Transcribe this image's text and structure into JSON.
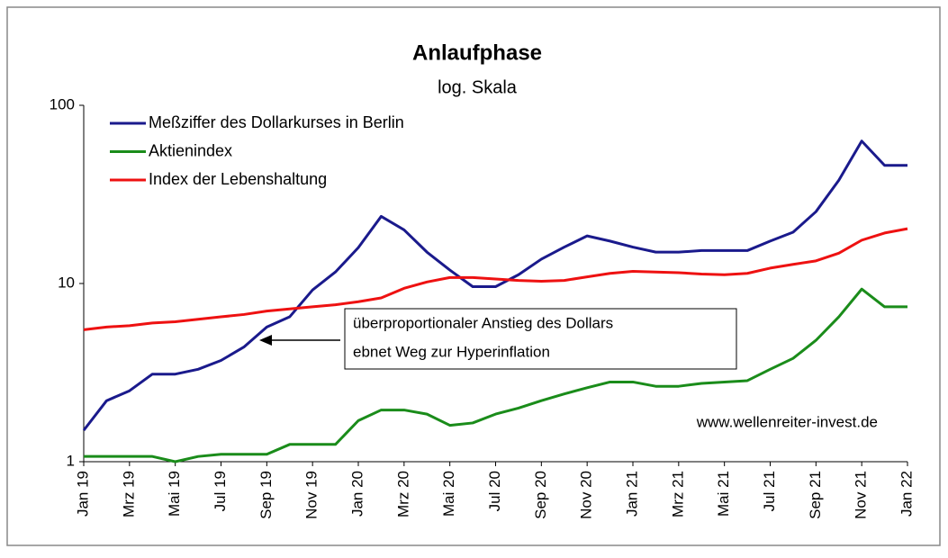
{
  "chart_data": {
    "type": "line",
    "title": "Anlaufphase",
    "subtitle": "log. Skala",
    "categories": [
      "Jan 19",
      null,
      "Mrz 19",
      null,
      "Mai 19",
      null,
      "Jul 19",
      null,
      "Sep 19",
      null,
      "Nov 19",
      null,
      "Jan 20",
      null,
      "Mrz 20",
      null,
      "Mai 20",
      null,
      "Jul 20",
      null,
      "Sep 20",
      null,
      "Nov 20",
      null,
      "Jan 21",
      null,
      "Mrz 21",
      null,
      "Mai 21",
      null,
      "Jul 21",
      null,
      "Sep 21",
      null,
      "Nov 21",
      null,
      "Jan 22"
    ],
    "series": [
      {
        "name": "Meßziffer des Dollarkurses in Berlin",
        "color": "#1a1a8c",
        "values": [
          1.5,
          2.2,
          2.5,
          3.1,
          3.1,
          3.3,
          3.7,
          4.4,
          5.7,
          6.5,
          9.2,
          11.6,
          15.9,
          23.8,
          20,
          15,
          11.9,
          9.6,
          9.6,
          11.2,
          13.7,
          16,
          18.5,
          17.3,
          16,
          15,
          15,
          15.3,
          15.3,
          15.3,
          17.3,
          19.4,
          25.3,
          38,
          63,
          46,
          46
        ]
      },
      {
        "name": "Aktienindex",
        "color": "#1a8c1a",
        "values": [
          1.07,
          1.07,
          1.07,
          1.07,
          1.0,
          1.07,
          1.1,
          1.1,
          1.1,
          1.25,
          1.25,
          1.25,
          1.7,
          1.95,
          1.95,
          1.85,
          1.6,
          1.65,
          1.85,
          2.0,
          2.2,
          2.4,
          2.6,
          2.8,
          2.8,
          2.65,
          2.65,
          2.75,
          2.8,
          2.85,
          3.3,
          3.8,
          4.8,
          6.5,
          9.3,
          7.4,
          7.4
        ]
      },
      {
        "name": "Index der Lebenshaltung",
        "color": "#ee1111",
        "values": [
          5.5,
          5.7,
          5.8,
          6.0,
          6.1,
          6.3,
          6.5,
          6.7,
          7.0,
          7.2,
          7.4,
          7.6,
          7.9,
          8.3,
          9.4,
          10.2,
          10.8,
          10.8,
          10.6,
          10.4,
          10.3,
          10.4,
          10.9,
          11.4,
          11.7,
          11.6,
          11.5,
          11.3,
          11.2,
          11.4,
          12.2,
          12.8,
          13.4,
          14.8,
          17.5,
          19.2,
          20.3
        ]
      }
    ],
    "ylim": [
      1,
      100
    ],
    "yticks": [
      1,
      10,
      100
    ],
    "log": true,
    "grid": false,
    "legend": "top-left",
    "annotation": [
      "überproportionaler Anstieg des Dollars",
      "ebnet Weg zur Hyperinflation"
    ],
    "watermark": "www.wellenreiter-invest.de"
  }
}
